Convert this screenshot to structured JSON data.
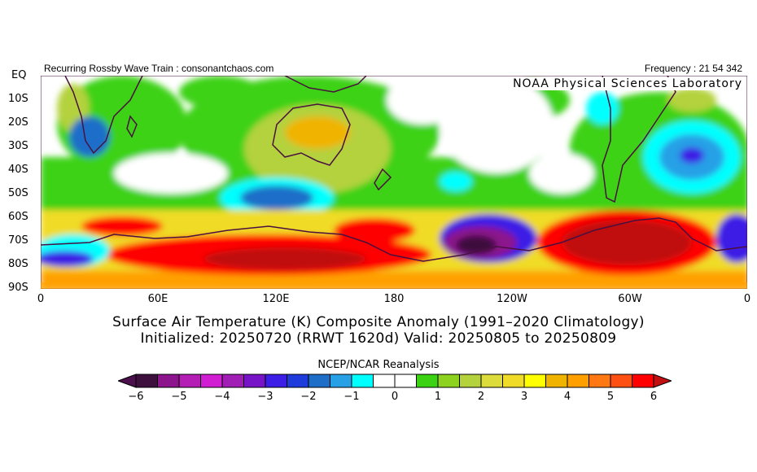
{
  "header": {
    "left": "Recurring Rossby Wave Train : consonantchaos.com",
    "right": "Frequency : 21 54 342",
    "lab": "NOAA Physical Sciences Laboratory"
  },
  "map": {
    "lat_labels": [
      "EQ",
      "10S",
      "20S",
      "30S",
      "40S",
      "50S",
      "60S",
      "70S",
      "80S",
      "90S"
    ],
    "lon_labels": [
      "0",
      "60E",
      "120E",
      "180",
      "120W",
      "60W",
      "0"
    ],
    "coastline_color": "#4a1040"
  },
  "title": {
    "line1": "Surface Air Temperature (K) Composite Anomaly (1991–2020 Climatology)",
    "line2": "Initialized: 20250720 (RRWT 1620d) Valid: 20250805 to 20250809"
  },
  "colorbar": {
    "label": "NCEP/NCAR Reanalysis",
    "ticks": [
      "−6",
      "−5",
      "−4",
      "−3",
      "−2",
      "−1",
      "0",
      "1",
      "2",
      "3",
      "4",
      "5",
      "6"
    ],
    "under_color": "#4b0f4b",
    "over_color": "#c01010",
    "colors": [
      "#3c0f3c",
      "#8c148c",
      "#b41eb4",
      "#d21ed2",
      "#a01eb4",
      "#7814c8",
      "#3c1ee6",
      "#1e3cdc",
      "#1e6ec8",
      "#28a0e6",
      "#00ffff",
      "#ffffff",
      "#ffffff",
      "#3cd214",
      "#8cd21e",
      "#b4d23c",
      "#dcdc3c",
      "#f0dc28",
      "#ffff00",
      "#f0b400",
      "#ffa000",
      "#ff7814",
      "#ff5014",
      "#ff0000"
    ]
  }
}
